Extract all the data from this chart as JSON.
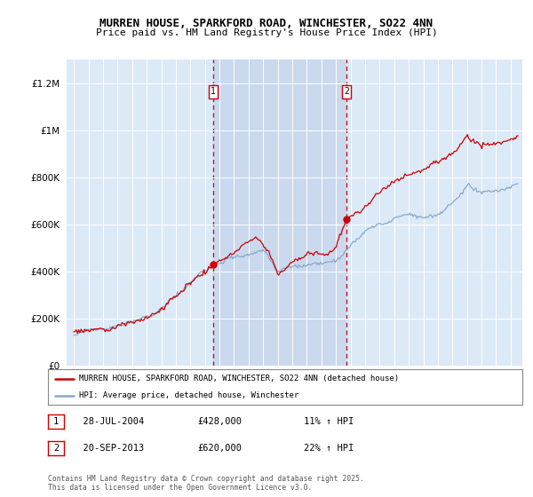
{
  "title": "MURREN HOUSE, SPARKFORD ROAD, WINCHESTER, SO22 4NN",
  "subtitle": "Price paid vs. HM Land Registry's House Price Index (HPI)",
  "legend_line1": "MURREN HOUSE, SPARKFORD ROAD, WINCHESTER, SO22 4NN (detached house)",
  "legend_line2": "HPI: Average price, detached house, Winchester",
  "annotation1_label": "1",
  "annotation1_date": "28-JUL-2004",
  "annotation1_price": 428000,
  "annotation1_hpi_txt": "11% ↑ HPI",
  "annotation2_label": "2",
  "annotation2_date": "20-SEP-2013",
  "annotation2_price": 620000,
  "annotation2_hpi_txt": "22% ↑ HPI",
  "footnote": "Contains HM Land Registry data © Crown copyright and database right 2025.\nThis data is licensed under the Open Government Licence v3.0.",
  "background_color": "#ffffff",
  "plot_bg_color": "#dce9f7",
  "highlight_color": "#c8d8ee",
  "grid_color": "#ffffff",
  "line_color_red": "#cc0000",
  "line_color_blue": "#88aacc",
  "vline_color": "#cc0000",
  "annotation_box_color": "#cc0000",
  "ylim": [
    0,
    1300000
  ],
  "yticks": [
    0,
    200000,
    400000,
    600000,
    800000,
    1000000,
    1200000
  ],
  "ytick_labels": [
    "£0",
    "£200K",
    "£400K",
    "£600K",
    "£800K",
    "£1M",
    "£1.2M"
  ],
  "year_start": 1995,
  "year_end": 2025,
  "sale1_year": 2004.57,
  "sale2_year": 2013.72,
  "sale1_val": 428000,
  "sale2_val": 620000
}
